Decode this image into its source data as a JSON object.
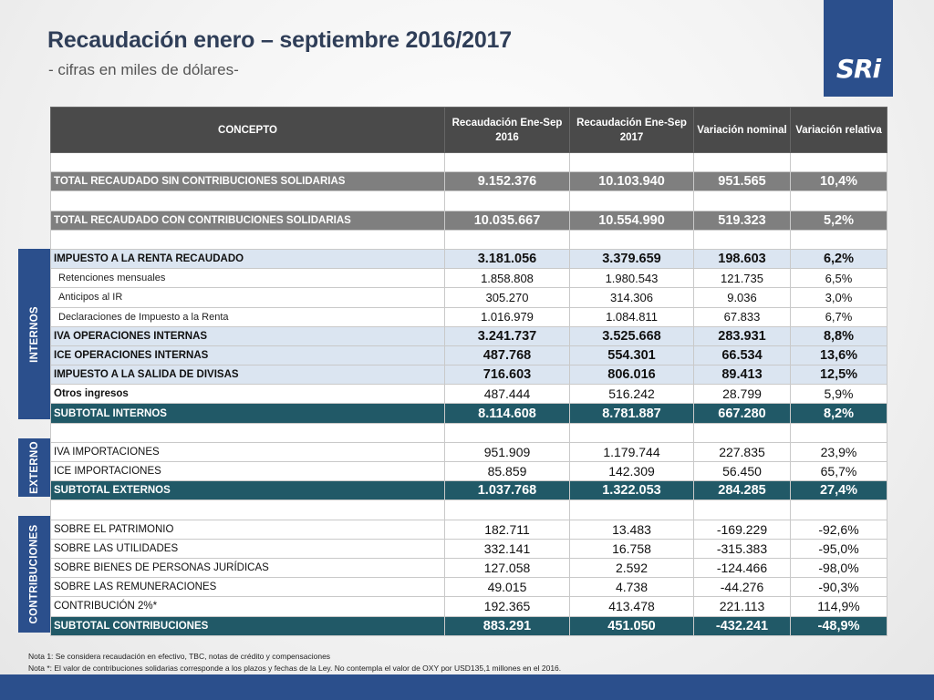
{
  "header": {
    "title": "Recaudación enero – septiembre 2016/2017",
    "subtitle": "- cifras en miles de dólares-",
    "logo": "SRi"
  },
  "table": {
    "columns": [
      "CONCEPTO",
      "Recaudación Ene-Sep 2016",
      "Recaudación Ene-Sep 2017",
      "Variación nominal",
      "Variación relativa"
    ],
    "total_sin": {
      "label": "TOTAL RECAUDADO SIN CONTRIBUCIONES SOLIDARIAS",
      "v2016": "9.152.376",
      "v2017": "10.103.940",
      "nominal": "951.565",
      "relativa": "10,4%"
    },
    "total_con": {
      "label": "TOTAL RECAUDADO CON CONTRIBUCIONES SOLIDARIAS",
      "v2016": "10.035.667",
      "v2017": "10.554.990",
      "nominal": "519.323",
      "relativa": "5,2%"
    },
    "internos": [
      {
        "label": "IMPUESTO A LA RENTA RECAUDADO",
        "v2016": "3.181.056",
        "v2017": "3.379.659",
        "nominal": "198.603",
        "relativa": "6,2%"
      },
      {
        "label": "Retenciones mensuales",
        "v2016": "1.858.808",
        "v2017": "1.980.543",
        "nominal": "121.735",
        "relativa": "6,5%"
      },
      {
        "label": "Anticipos al IR",
        "v2016": "305.270",
        "v2017": "314.306",
        "nominal": "9.036",
        "relativa": "3,0%"
      },
      {
        "label": "Declaraciones de Impuesto a la Renta",
        "v2016": "1.016.979",
        "v2017": "1.084.811",
        "nominal": "67.833",
        "relativa": "6,7%"
      },
      {
        "label": "IVA OPERACIONES INTERNAS",
        "v2016": "3.241.737",
        "v2017": "3.525.668",
        "nominal": "283.931",
        "relativa": "8,8%"
      },
      {
        "label": "ICE OPERACIONES INTERNAS",
        "v2016": "487.768",
        "v2017": "554.301",
        "nominal": "66.534",
        "relativa": "13,6%"
      },
      {
        "label": "IMPUESTO A LA SALIDA DE DIVISAS",
        "v2016": "716.603",
        "v2017": "806.016",
        "nominal": "89.413",
        "relativa": "12,5%"
      },
      {
        "label": "Otros ingresos",
        "v2016": "487.444",
        "v2017": "516.242",
        "nominal": "28.799",
        "relativa": "5,9%"
      },
      {
        "label": "SUBTOTAL INTERNOS",
        "v2016": "8.114.608",
        "v2017": "8.781.887",
        "nominal": "667.280",
        "relativa": "8,2%"
      }
    ],
    "externos": [
      {
        "label": "IVA IMPORTACIONES",
        "v2016": "951.909",
        "v2017": "1.179.744",
        "nominal": "227.835",
        "relativa": "23,9%"
      },
      {
        "label": "ICE IMPORTACIONES",
        "v2016": "85.859",
        "v2017": "142.309",
        "nominal": "56.450",
        "relativa": "65,7%"
      },
      {
        "label": "SUBTOTAL EXTERNOS",
        "v2016": "1.037.768",
        "v2017": "1.322.053",
        "nominal": "284.285",
        "relativa": "27,4%"
      }
    ],
    "contribuciones": [
      {
        "label": "SOBRE EL PATRIMONIO",
        "v2016": "182.711",
        "v2017": "13.483",
        "nominal": "-169.229",
        "relativa": "-92,6%"
      },
      {
        "label": "SOBRE LAS UTILIDADES",
        "v2016": "332.141",
        "v2017": "16.758",
        "nominal": "-315.383",
        "relativa": "-95,0%"
      },
      {
        "label": "SOBRE BIENES DE PERSONAS JURÍDICAS",
        "v2016": "127.058",
        "v2017": "2.592",
        "nominal": "-124.466",
        "relativa": "-98,0%"
      },
      {
        "label": "SOBRE LAS REMUNERACIONES",
        "v2016": "49.015",
        "v2017": "4.738",
        "nominal": "-44.276",
        "relativa": "-90,3%"
      },
      {
        "label": "CONTRIBUCIÓN 2%*",
        "v2016": "192.365",
        "v2017": "413.478",
        "nominal": "221.113",
        "relativa": "114,9%"
      },
      {
        "label": "SUBTOTAL CONTRIBUCIONES",
        "v2016": "883.291",
        "v2017": "451.050",
        "nominal": "-432.241",
        "relativa": "-48,9%"
      }
    ]
  },
  "side_labels": {
    "internos": "INTERNOS",
    "externo": "EXTERNO",
    "contribuciones": "CONTRIBUCIONES"
  },
  "notes": [
    "Nota 1: Se considera recaudación en efectivo, TBC, notas de crédito y compensaciones",
    "Nota *: El valor de contribuciones solidarias corresponde a los plazos y fechas de la Ley. No contempla el valor de OXY por USD135,1 millones en el 2016."
  ]
}
